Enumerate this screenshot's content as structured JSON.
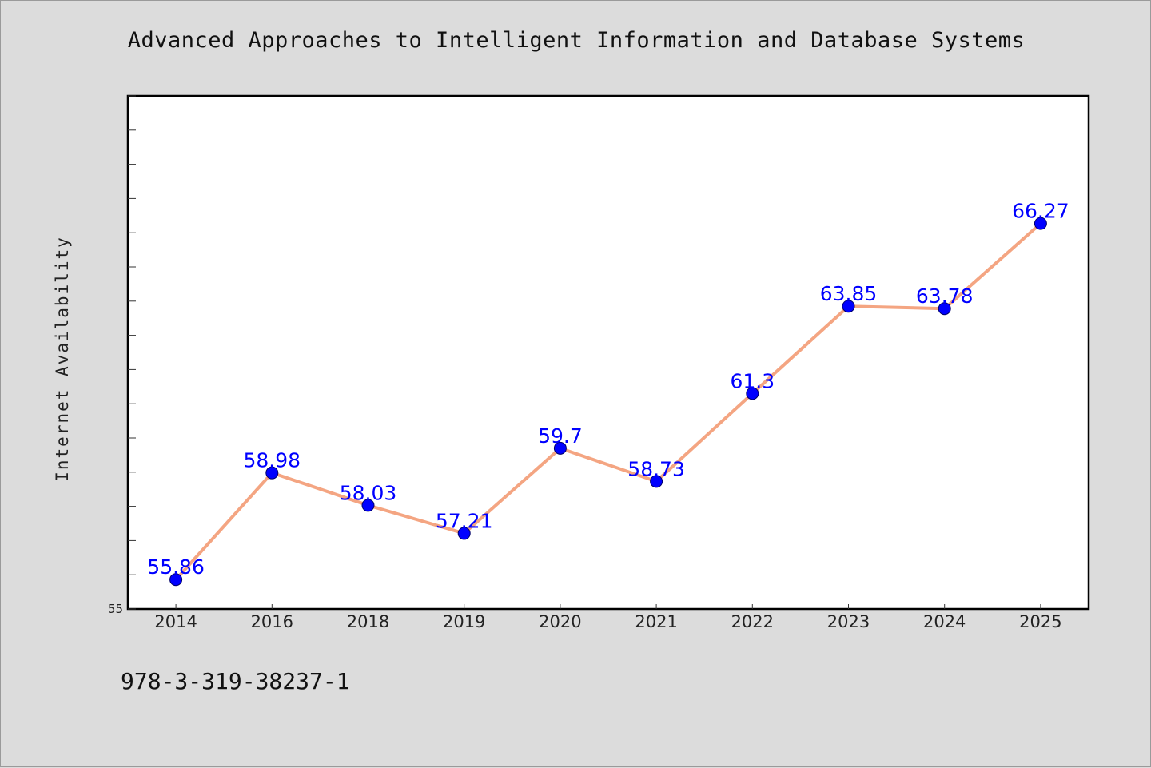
{
  "chart_data": {
    "type": "line",
    "title": "Advanced Approaches to Intelligent Information and Database Systems",
    "xlabel": "",
    "ylabel": "Internet Availability",
    "categories": [
      "2014",
      "2016",
      "2018",
      "2019",
      "2020",
      "2021",
      "2022",
      "2023",
      "2024",
      "2025"
    ],
    "values": [
      55.86,
      58.98,
      58.03,
      57.21,
      59.7,
      58.73,
      61.3,
      63.85,
      63.78,
      66.27
    ],
    "data_labels": [
      "55.86",
      "58.98",
      "58.03",
      "57.21",
      "59.7",
      "58.73",
      "61.3",
      "63.85",
      "63.78",
      "66.27"
    ],
    "ylim": [
      55,
      70
    ],
    "y_tick_labels": [
      "55"
    ],
    "grid": false,
    "legend": "none"
  },
  "footer": {
    "isbn": "978-3-319-38237-1"
  },
  "colors": {
    "background": "#dcdcdc",
    "plot_area": "#ffffff",
    "line": "#f4a582",
    "marker": "#0000ff",
    "data_label": "#0000ff"
  }
}
